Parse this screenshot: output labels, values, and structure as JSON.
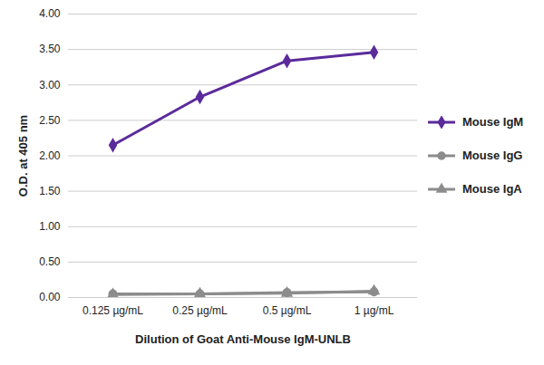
{
  "chart_data": {
    "type": "line",
    "x_label": "Dilution of Goat Anti-Mouse IgM-UNLB",
    "y_label": "O.D. at 405 nm",
    "categories": [
      "0.125 µg/mL",
      "0.25 µg/mL",
      "0.5 µg/mL",
      "1 µg/mL"
    ],
    "series": [
      {
        "name": "Mouse IgM",
        "color": "#5b2b9b",
        "marker": "diamond",
        "values": [
          2.15,
          2.83,
          3.34,
          3.46
        ]
      },
      {
        "name": "Mouse IgG",
        "color": "#8c8c8c",
        "marker": "circle",
        "values": [
          0.05,
          0.05,
          0.07,
          0.08
        ]
      },
      {
        "name": "Mouse IgA",
        "color": "#8c8c8c",
        "marker": "triangle",
        "values": [
          0.04,
          0.05,
          0.06,
          0.09
        ]
      }
    ],
    "ylim": [
      0,
      4
    ],
    "yticks": [
      {
        "value": 0,
        "label": "0.00"
      },
      {
        "value": 0.5,
        "label": "0.50"
      },
      {
        "value": 1,
        "label": "1.00"
      },
      {
        "value": 1.5,
        "label": "1.50"
      },
      {
        "value": 2,
        "label": "2.00"
      },
      {
        "value": 2.5,
        "label": "2.50"
      },
      {
        "value": 3,
        "label": "3.00"
      },
      {
        "value": 3.5,
        "label": "3.50"
      },
      {
        "value": 4,
        "label": "4.00"
      }
    ],
    "grid": true,
    "legend": "right"
  }
}
